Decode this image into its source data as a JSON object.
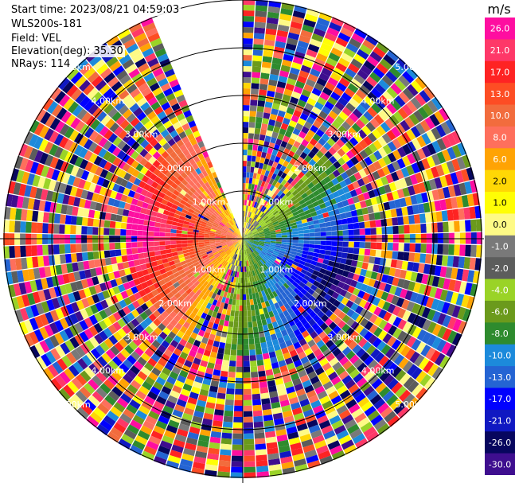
{
  "header": {
    "start_time": "Start time: 2023/08/21 04:59:03",
    "instrument": "WLS200s-181",
    "field": "Field: VEL",
    "elevation": "Elevation(deg): 35.30",
    "nrays": "NRays: 114"
  },
  "chart_data": {
    "type": "heatmap",
    "projection": "polar-ppi",
    "field": "VEL",
    "units": "m/s",
    "elevation_deg": 35.3,
    "n_rays": 114,
    "range_rings_km": [
      1,
      2,
      3,
      4,
      5
    ],
    "range_ring_labels": [
      "1.00km",
      "2.00km",
      "3.00km",
      "4.00km",
      "5.00km"
    ],
    "max_range_km": 5.0,
    "missing_sector_deg": [
      338,
      360
    ],
    "colorbar": {
      "unit_label": "m/s",
      "ticks": [
        "26.0",
        "21.0",
        "17.0",
        "13.0",
        "10.0",
        "8.0",
        "6.0",
        "2.0",
        "1.0",
        "0.0",
        "-1.0",
        "-2.0",
        "-4.0",
        "-6.0",
        "-8.0",
        "-10.0",
        "-13.0",
        "-17.0",
        "-21.0",
        "-26.0",
        "-30.0"
      ],
      "colors": [
        "#fe0ea0",
        "#fe3868",
        "#fe2323",
        "#fd4d24",
        "#f26c3d",
        "#fe6f5c",
        "#ffa304",
        "#ffd705",
        "#fffe05",
        "#fefa86",
        "#797979",
        "#5c5d5c",
        "#9ad327",
        "#6b9a1c",
        "#2e8b2e",
        "#1c8adb",
        "#2464d3",
        "#0101fe",
        "#1018c2",
        "#07065e",
        "#3e0e8f"
      ]
    },
    "velocity_structure": {
      "near_field_receding_sector_deg": [
        210,
        335
      ],
      "near_field_approaching_sector_deg": [
        45,
        190
      ],
      "near_field_range_km": 2.5,
      "far_field": "noise"
    }
  }
}
